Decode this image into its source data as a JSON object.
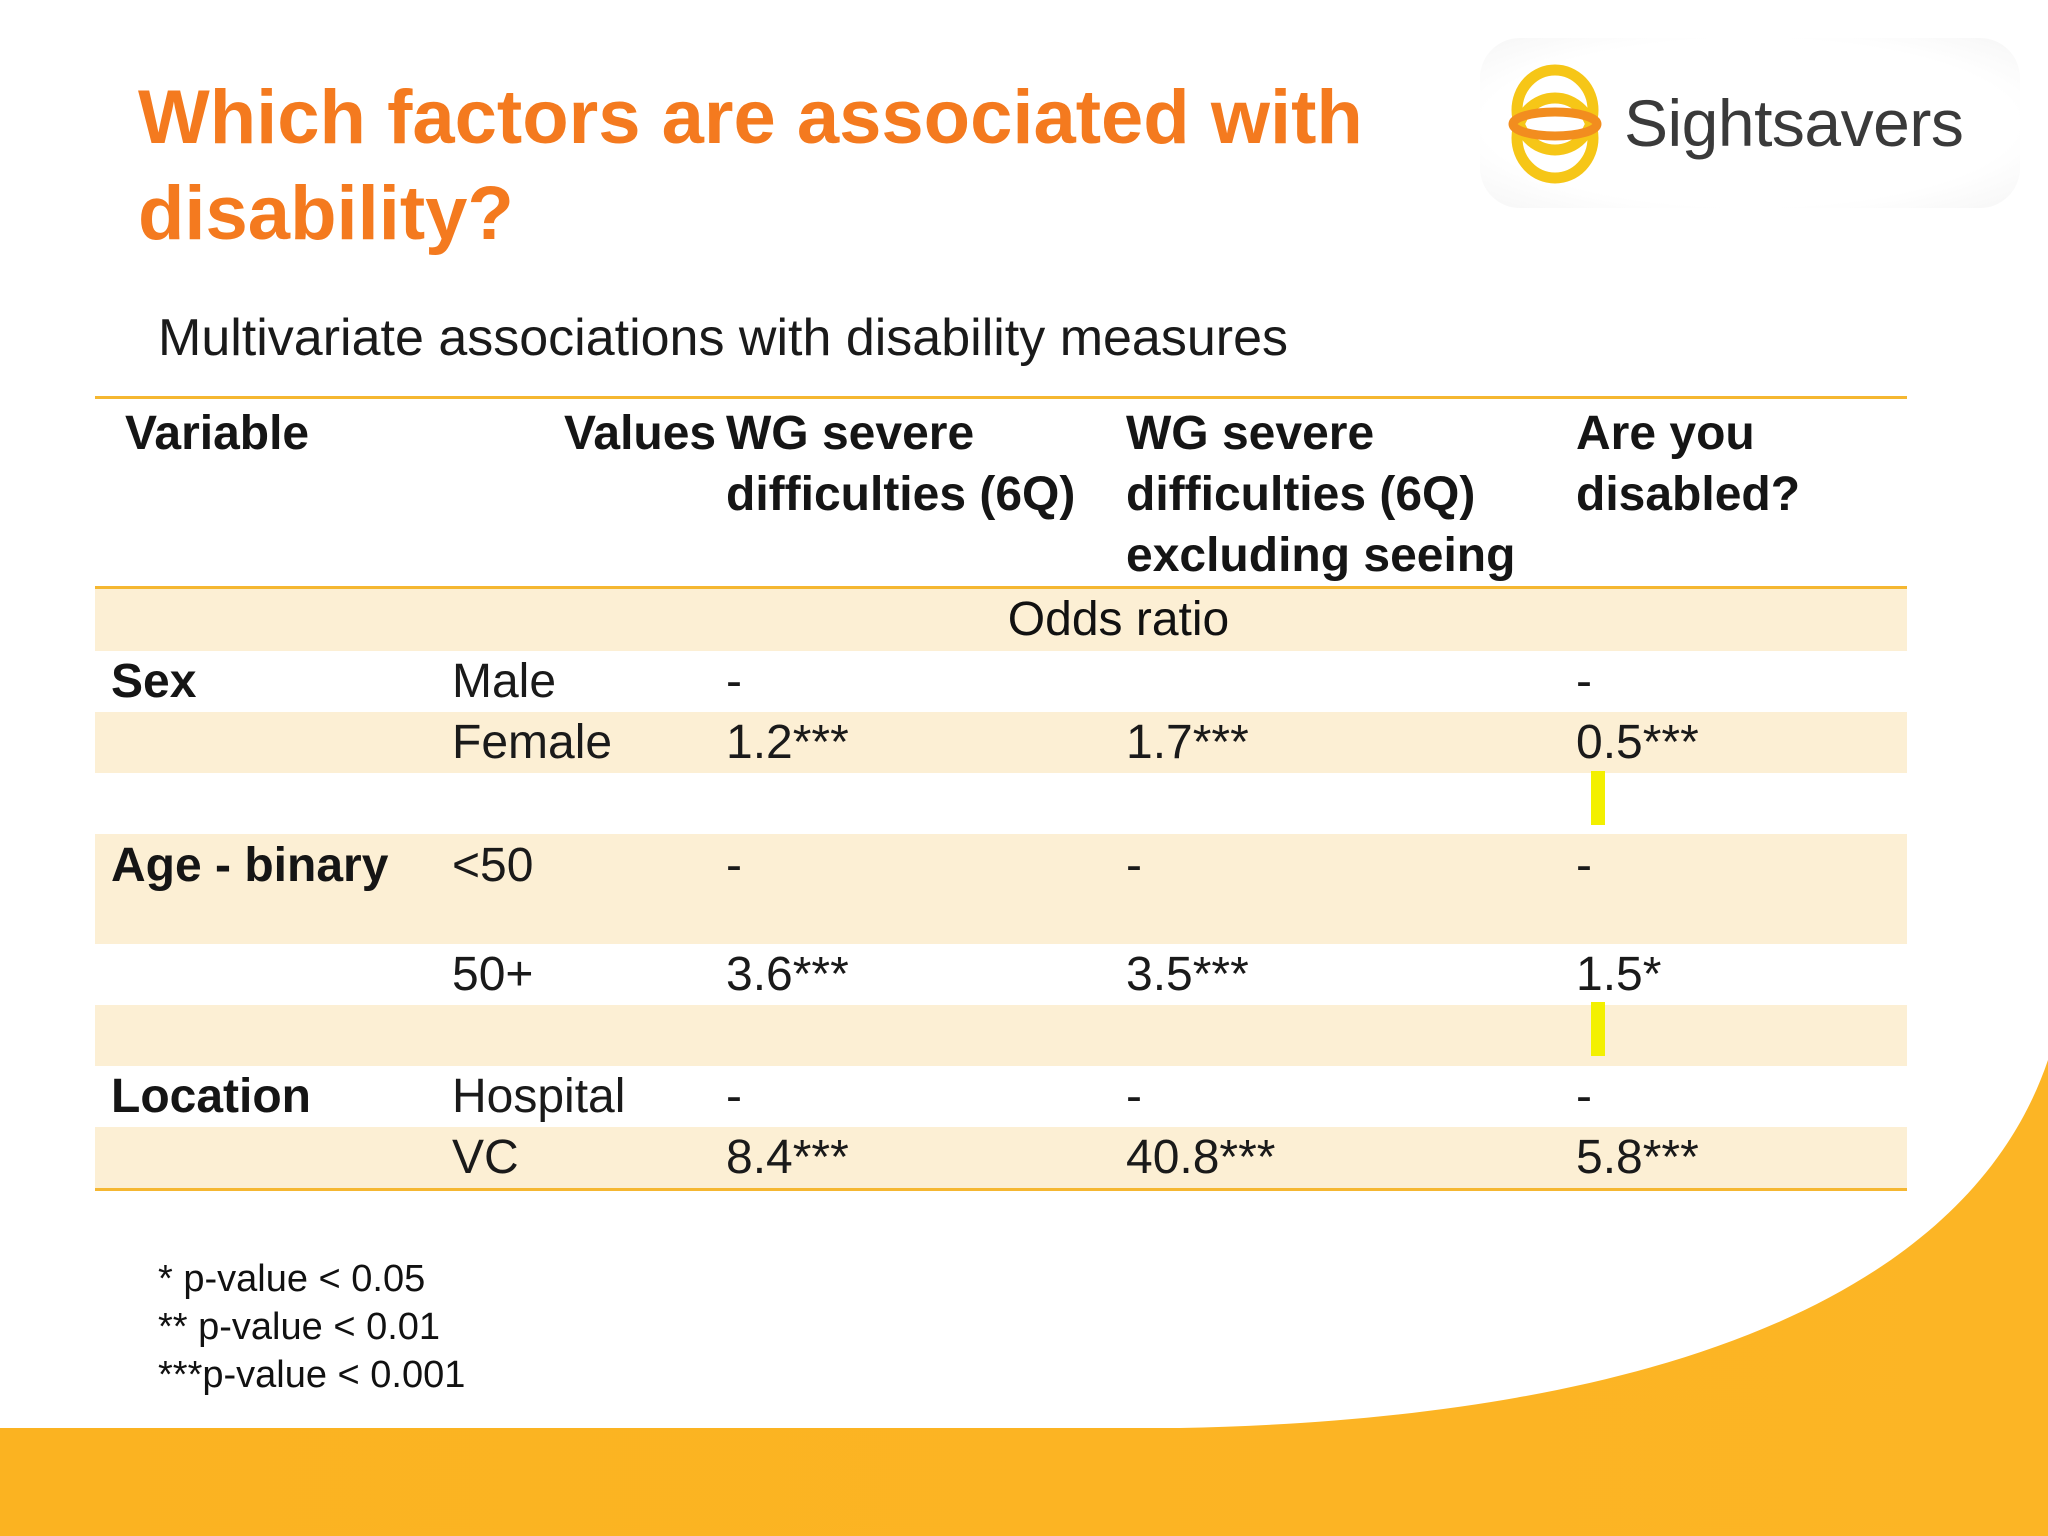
{
  "slide": {
    "title": "Which factors are associated with disability?",
    "subtitle": "Multivariate associations with disability measures"
  },
  "logo": {
    "text": "Sightsavers",
    "icon": "sightsavers-rings-icon"
  },
  "table": {
    "headers": [
      "Variable",
      "Values",
      "WG severe difficulties (6Q)",
      "WG severe difficulties (6Q) excluding seeing",
      "Are you disabled?"
    ],
    "odds_ratio_label": "Odds ratio",
    "rows": [
      {
        "variable": "Sex",
        "value": "Male",
        "wg6q": "-",
        "wg6q_excl": "",
        "disabled": "-"
      },
      {
        "variable": "",
        "value": "Female",
        "wg6q": "1.2***",
        "wg6q_excl": "1.7***",
        "disabled": "0.5***"
      },
      {
        "variable": "",
        "value": "",
        "wg6q": "",
        "wg6q_excl": "",
        "disabled": ""
      },
      {
        "variable": "Age - binary",
        "value": "<50",
        "wg6q": "-",
        "wg6q_excl": "-",
        "disabled": "-"
      },
      {
        "variable": "",
        "value": "50+",
        "wg6q": "3.6***",
        "wg6q_excl": "3.5***",
        "disabled": "1.5*"
      },
      {
        "variable": "",
        "value": "",
        "wg6q": "",
        "wg6q_excl": "",
        "disabled": ""
      },
      {
        "variable": "Location",
        "value": "Hospital",
        "wg6q": "-",
        "wg6q_excl": "-",
        "disabled": "-"
      },
      {
        "variable": "",
        "value": "VC",
        "wg6q": "8.4***",
        "wg6q_excl": "40.8***",
        "disabled": "5.8***"
      }
    ]
  },
  "notes": [
    "* p-value < 0.05",
    "** p-value < 0.01",
    "***p-value < 0.001"
  ],
  "colors": {
    "title": "#f47a1f",
    "accent": "#f5b731",
    "band": "#fcefd4",
    "highlight": "#f3f000"
  }
}
